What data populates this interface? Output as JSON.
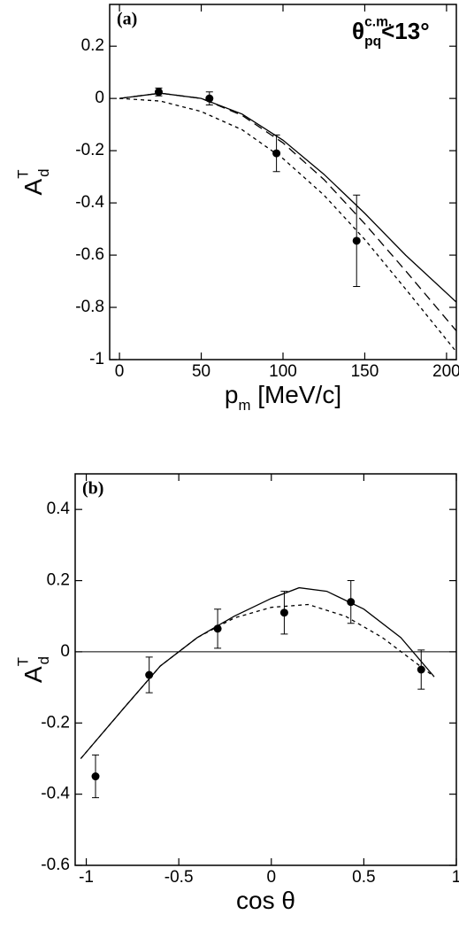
{
  "chart_data": [
    {
      "type": "line",
      "panel_label": "(a)",
      "annotation": {
        "base": "θ",
        "sup": "c.m.",
        "sub": "pq",
        "rest": "<13°"
      },
      "ylabel": {
        "base": "A",
        "sup": "T",
        "sub": "d"
      },
      "xlabel": {
        "base": "p",
        "sub": "m",
        "rest": " [MeV/c]"
      },
      "xlim": [
        -6,
        206
      ],
      "ylim": [
        -1,
        0.36
      ],
      "xticks": [
        0,
        50,
        100,
        150,
        200
      ],
      "yticks": [
        0.2,
        0,
        -0.2,
        -0.4,
        -0.6,
        -0.8,
        -1
      ],
      "color": "#000000",
      "series": [
        {
          "dash": "solid",
          "x": [
            0,
            25,
            50,
            75,
            100,
            125,
            150,
            175,
            206
          ],
          "values": [
            0,
            0.02,
            0.0,
            -0.06,
            -0.16,
            -0.29,
            -0.44,
            -0.6,
            -0.78
          ]
        },
        {
          "dash": "long",
          "x": [
            0,
            25,
            50,
            75,
            100,
            125,
            150,
            175,
            206
          ],
          "values": [
            0,
            0.02,
            0.0,
            -0.065,
            -0.17,
            -0.31,
            -0.48,
            -0.66,
            -0.89
          ]
        },
        {
          "dash": "short",
          "x": [
            0,
            25,
            50,
            75,
            100,
            125,
            150,
            175,
            206
          ],
          "values": [
            0,
            -0.01,
            -0.05,
            -0.12,
            -0.23,
            -0.37,
            -0.54,
            -0.73,
            -0.97
          ]
        }
      ],
      "points": {
        "x": [
          24,
          55,
          96,
          145
        ],
        "values": [
          0.025,
          0.0,
          -0.21,
          -0.545
        ],
        "errors": [
          0.015,
          0.025,
          0.07,
          0.175
        ]
      }
    },
    {
      "type": "line",
      "panel_label": "(b)",
      "ylabel": {
        "base": "A",
        "sup": "T",
        "sub": "d"
      },
      "xlabel": {
        "base": "cos θ"
      },
      "xlim": [
        -1.06,
        1
      ],
      "ylim": [
        -0.6,
        0.5
      ],
      "xticks": [
        -1,
        -0.5,
        0,
        0.5,
        1
      ],
      "yticks": [
        0.4,
        0.2,
        0,
        -0.2,
        -0.4,
        -0.6
      ],
      "hlines": [
        0
      ],
      "color": "#000000",
      "series": [
        {
          "dash": "solid",
          "x": [
            -1.03,
            -0.8,
            -0.6,
            -0.4,
            -0.2,
            0,
            0.15,
            0.3,
            0.5,
            0.7,
            0.88
          ],
          "values": [
            -0.3,
            -0.16,
            -0.04,
            0.04,
            0.1,
            0.15,
            0.18,
            0.17,
            0.12,
            0.04,
            -0.07
          ]
        },
        {
          "dash": "short",
          "x": [
            -1.03,
            -0.8,
            -0.6,
            -0.4,
            -0.2,
            0,
            0.2,
            0.4,
            0.6,
            0.88
          ],
          "values": [
            -0.3,
            -0.16,
            -0.04,
            0.04,
            0.095,
            0.125,
            0.133,
            0.1,
            0.04,
            -0.07
          ]
        }
      ],
      "points": {
        "x": [
          -0.95,
          -0.66,
          -0.29,
          0.07,
          0.43,
          0.81
        ],
        "values": [
          -0.35,
          -0.065,
          0.065,
          0.11,
          0.14,
          -0.05
        ],
        "errors": [
          0.06,
          0.05,
          0.055,
          0.06,
          0.06,
          0.055
        ]
      }
    }
  ]
}
